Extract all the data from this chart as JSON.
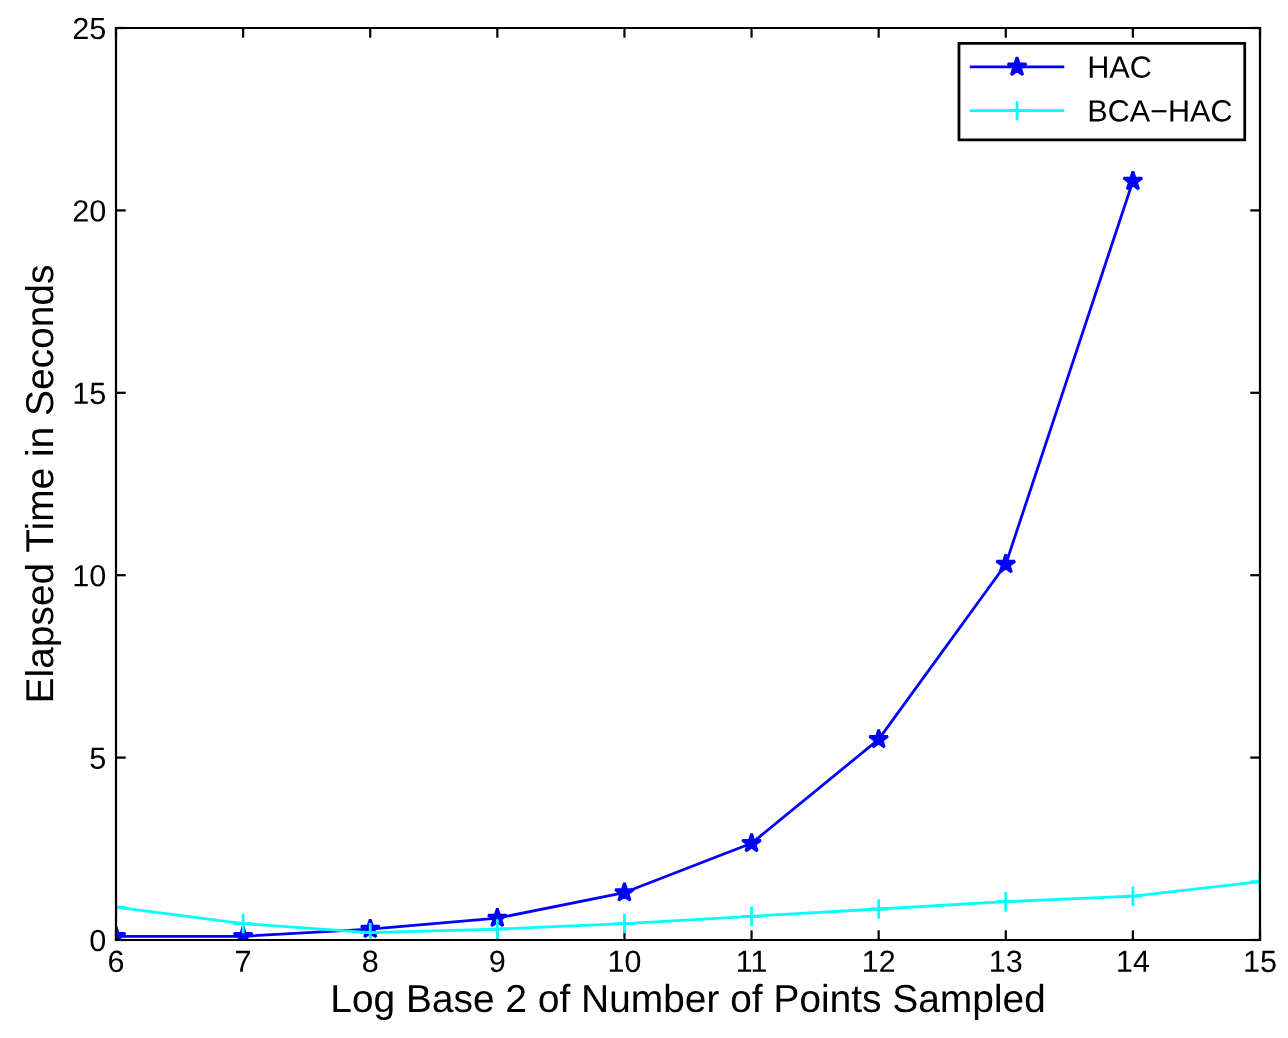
{
  "chart_data": {
    "type": "line",
    "xlabel": "Log Base 2 of Number of Points Sampled",
    "ylabel": "Elapsed Time in Seconds",
    "xlim": [
      6,
      15
    ],
    "xticks": [
      6,
      7,
      8,
      9,
      10,
      11,
      12,
      13,
      14,
      15
    ],
    "ylim": [
      0,
      25
    ],
    "yticks": [
      0,
      5,
      10,
      15,
      20,
      25
    ],
    "grid": false,
    "legend": "top right",
    "series": [
      {
        "name": "HAC",
        "color": "#0000ff",
        "marker": "star",
        "x": [
          6,
          7,
          8,
          9,
          10,
          11,
          12,
          13,
          14
        ],
        "values": [
          0.1,
          0.1,
          0.3,
          0.6,
          1.3,
          2.65,
          5.5,
          10.3,
          20.8
        ]
      },
      {
        "name": "BCA−HAC",
        "color": "#00ffff",
        "marker": "cross",
        "x": [
          6,
          7,
          8,
          9,
          10,
          11,
          12,
          13,
          14,
          15
        ],
        "values": [
          0.9,
          0.45,
          0.2,
          0.3,
          0.45,
          0.65,
          0.85,
          1.05,
          1.2,
          1.6
        ]
      }
    ]
  }
}
